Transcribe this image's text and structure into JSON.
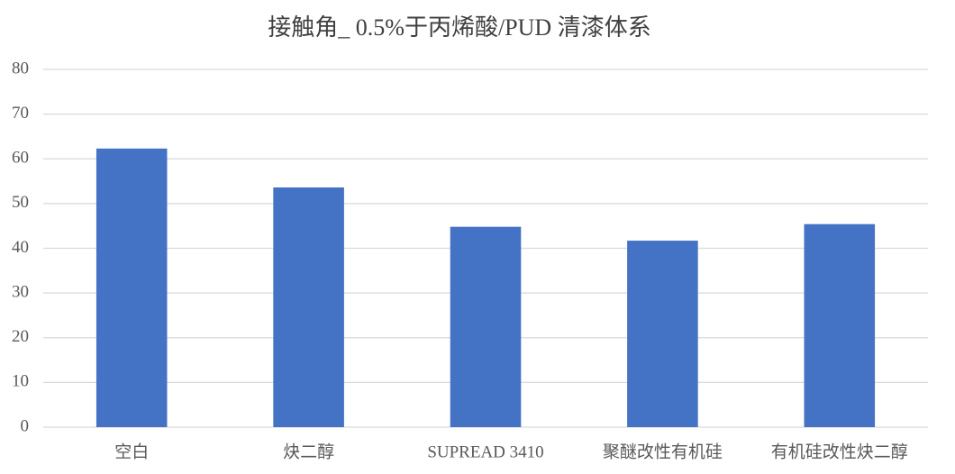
{
  "chart_data": {
    "type": "bar",
    "title": "接触角_ 0.5%于丙烯酸/PUD 清漆体系",
    "categories": [
      "空白",
      "炔二醇",
      "SUPREAD 3410",
      "聚醚改性有机硅",
      "有机硅改性炔二醇"
    ],
    "values": [
      62.3,
      53.6,
      44.8,
      41.7,
      45.4
    ],
    "color": "#4472c4",
    "ylim": [
      0,
      80
    ],
    "yticks": [
      0,
      10,
      20,
      30,
      40,
      50,
      60,
      70,
      80
    ],
    "grid": true
  }
}
